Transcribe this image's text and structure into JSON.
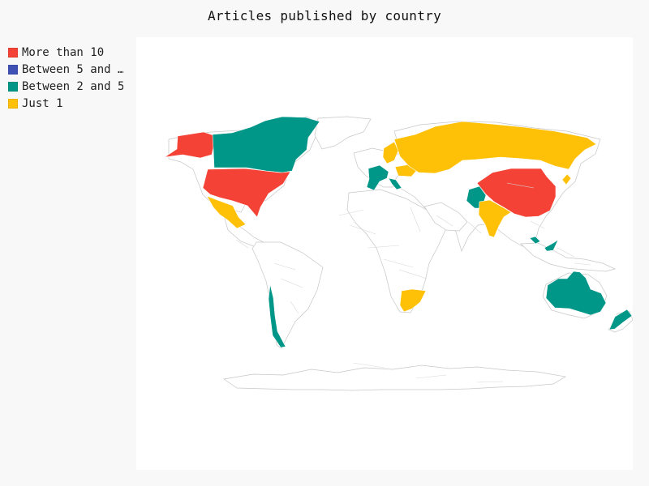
{
  "title": "Articles published by country",
  "legend": {
    "items": [
      {
        "label": "More than 10",
        "color": "#f44336"
      },
      {
        "label": "Between 5 and …",
        "color": "#3f51b5"
      },
      {
        "label": "Between 2 and 5",
        "color": "#009688"
      },
      {
        "label": "Just 1",
        "color": "#ffc107"
      }
    ]
  },
  "map": {
    "type": "choropleth",
    "colors": {
      "more_than_10": "#f44336",
      "between_5_and_10": "#3f51b5",
      "between_2_and_5": "#009688",
      "just_1": "#ffc107",
      "no_data": "#ffffff",
      "border": "#c6c6c6"
    }
  }
}
